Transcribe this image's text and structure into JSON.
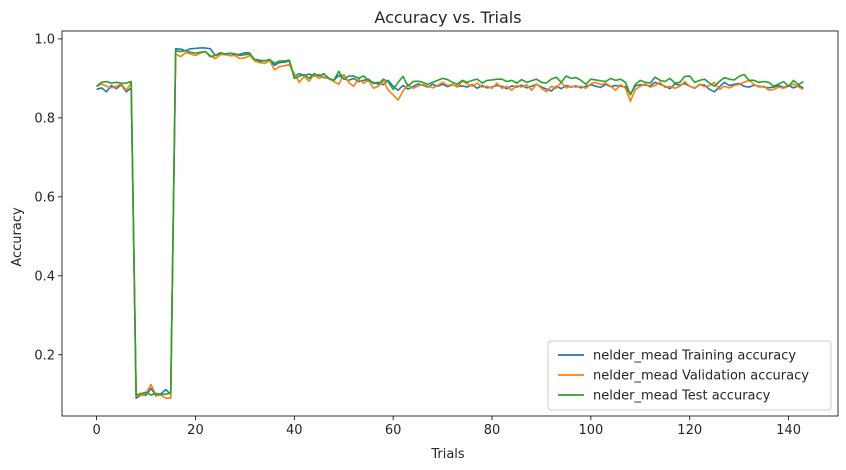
{
  "chart_data": {
    "type": "line",
    "title": "Accuracy vs. Trials",
    "xlabel": "Trials",
    "ylabel": "Accuracy",
    "xlim": [
      -7,
      150
    ],
    "ylim": [
      0.045,
      1.02
    ],
    "xticks": [
      0,
      20,
      40,
      60,
      80,
      100,
      120,
      140
    ],
    "yticks": [
      0.2,
      0.4,
      0.6,
      0.8,
      1.0
    ],
    "ytick_labels": [
      "0.2",
      "0.4",
      "0.6",
      "0.8",
      "1.0"
    ],
    "grid": false,
    "legend_position": "bottom-right",
    "series": [
      {
        "name": "nelder_mead Training accuracy",
        "color": "#1f77b4",
        "values": [
          0.872,
          0.876,
          0.866,
          0.882,
          0.874,
          0.884,
          0.866,
          0.876,
          0.09,
          0.098,
          0.098,
          0.115,
          0.096,
          0.101,
          0.112,
          0.1,
          0.975,
          0.974,
          0.97,
          0.975,
          0.976,
          0.977,
          0.977,
          0.975,
          0.958,
          0.962,
          0.96,
          0.963,
          0.96,
          0.961,
          0.965,
          0.964,
          0.944,
          0.943,
          0.945,
          0.946,
          0.933,
          0.94,
          0.941,
          0.944,
          0.905,
          0.912,
          0.907,
          0.911,
          0.906,
          0.909,
          0.902,
          0.9,
          0.895,
          0.908,
          0.899,
          0.895,
          0.9,
          0.892,
          0.895,
          0.898,
          0.887,
          0.89,
          0.884,
          0.895,
          0.88,
          0.87,
          0.882,
          0.873,
          0.879,
          0.886,
          0.883,
          0.878,
          0.885,
          0.88,
          0.885,
          0.879,
          0.884,
          0.88,
          0.881,
          0.878,
          0.884,
          0.875,
          0.882,
          0.876,
          0.878,
          0.882,
          0.88,
          0.874,
          0.881,
          0.878,
          0.883,
          0.876,
          0.88,
          0.885,
          0.878,
          0.873,
          0.868,
          0.88,
          0.874,
          0.882,
          0.878,
          0.881,
          0.876,
          0.88,
          0.884,
          0.88,
          0.877,
          0.885,
          0.879,
          0.882,
          0.88,
          0.879,
          0.86,
          0.881,
          0.884,
          0.883,
          0.881,
          0.89,
          0.885,
          0.88,
          0.874,
          0.886,
          0.883,
          0.887,
          0.88,
          0.875,
          0.884,
          0.883,
          0.872,
          0.866,
          0.878,
          0.89,
          0.882,
          0.885,
          0.887,
          0.88,
          0.878,
          0.883,
          0.88,
          0.878,
          0.876,
          0.878,
          0.882,
          0.877,
          0.882,
          0.876,
          0.882,
          0.876
        ]
      },
      {
        "name": "nelder_mead Validation accuracy",
        "color": "#ff7f0e",
        "values": [
          0.879,
          0.886,
          0.88,
          0.876,
          0.88,
          0.886,
          0.87,
          0.888,
          0.095,
          0.098,
          0.102,
          0.125,
          0.098,
          0.098,
          0.09,
          0.09,
          0.962,
          0.955,
          0.965,
          0.962,
          0.958,
          0.964,
          0.968,
          0.958,
          0.95,
          0.96,
          0.961,
          0.957,
          0.958,
          0.95,
          0.952,
          0.958,
          0.944,
          0.94,
          0.938,
          0.945,
          0.922,
          0.93,
          0.932,
          0.935,
          0.912,
          0.89,
          0.905,
          0.893,
          0.91,
          0.9,
          0.905,
          0.899,
          0.892,
          0.885,
          0.91,
          0.89,
          0.88,
          0.898,
          0.888,
          0.895,
          0.875,
          0.88,
          0.895,
          0.87,
          0.858,
          0.845,
          0.868,
          0.885,
          0.875,
          0.88,
          0.885,
          0.88,
          0.876,
          0.882,
          0.89,
          0.882,
          0.885,
          0.878,
          0.893,
          0.886,
          0.88,
          0.888,
          0.878,
          0.88,
          0.875,
          0.888,
          0.875,
          0.88,
          0.87,
          0.882,
          0.878,
          0.884,
          0.87,
          0.886,
          0.875,
          0.866,
          0.88,
          0.875,
          0.89,
          0.876,
          0.88,
          0.878,
          0.88,
          0.875,
          0.886,
          0.89,
          0.884,
          0.888,
          0.88,
          0.87,
          0.884,
          0.875,
          0.842,
          0.872,
          0.88,
          0.886,
          0.878,
          0.882,
          0.89,
          0.877,
          0.88,
          0.875,
          0.88,
          0.892,
          0.88,
          0.876,
          0.885,
          0.879,
          0.882,
          0.89,
          0.872,
          0.88,
          0.876,
          0.882,
          0.885,
          0.89,
          0.895,
          0.885,
          0.878,
          0.88,
          0.87,
          0.872,
          0.878,
          0.875,
          0.88,
          0.886,
          0.878,
          0.872
        ]
      },
      {
        "name": "nelder_mead Test accuracy",
        "color": "#2ca02c",
        "values": [
          0.88,
          0.89,
          0.892,
          0.888,
          0.89,
          0.888,
          0.888,
          0.892,
          0.098,
          0.102,
          0.105,
          0.098,
          0.102,
          0.1,
          0.1,
          0.104,
          0.97,
          0.968,
          0.97,
          0.966,
          0.964,
          0.966,
          0.968,
          0.955,
          0.958,
          0.965,
          0.962,
          0.964,
          0.962,
          0.958,
          0.96,
          0.962,
          0.948,
          0.946,
          0.944,
          0.948,
          0.938,
          0.944,
          0.944,
          0.946,
          0.9,
          0.905,
          0.91,
          0.9,
          0.912,
          0.906,
          0.912,
          0.9,
          0.895,
          0.918,
          0.898,
          0.906,
          0.906,
          0.9,
          0.906,
          0.895,
          0.89,
          0.885,
          0.898,
          0.892,
          0.872,
          0.89,
          0.905,
          0.88,
          0.892,
          0.893,
          0.89,
          0.885,
          0.89,
          0.895,
          0.9,
          0.897,
          0.89,
          0.885,
          0.895,
          0.89,
          0.895,
          0.898,
          0.888,
          0.895,
          0.896,
          0.898,
          0.898,
          0.892,
          0.895,
          0.888,
          0.897,
          0.89,
          0.894,
          0.898,
          0.89,
          0.888,
          0.898,
          0.903,
          0.89,
          0.906,
          0.9,
          0.902,
          0.895,
          0.885,
          0.898,
          0.896,
          0.894,
          0.892,
          0.9,
          0.895,
          0.898,
          0.89,
          0.858,
          0.885,
          0.895,
          0.89,
          0.888,
          0.903,
          0.895,
          0.892,
          0.9,
          0.888,
          0.89,
          0.905,
          0.906,
          0.89,
          0.895,
          0.898,
          0.888,
          0.88,
          0.892,
          0.902,
          0.898,
          0.896,
          0.905,
          0.91,
          0.895,
          0.895,
          0.89,
          0.892,
          0.89,
          0.88,
          0.886,
          0.892,
          0.88,
          0.895,
          0.884,
          0.892
        ]
      }
    ]
  }
}
